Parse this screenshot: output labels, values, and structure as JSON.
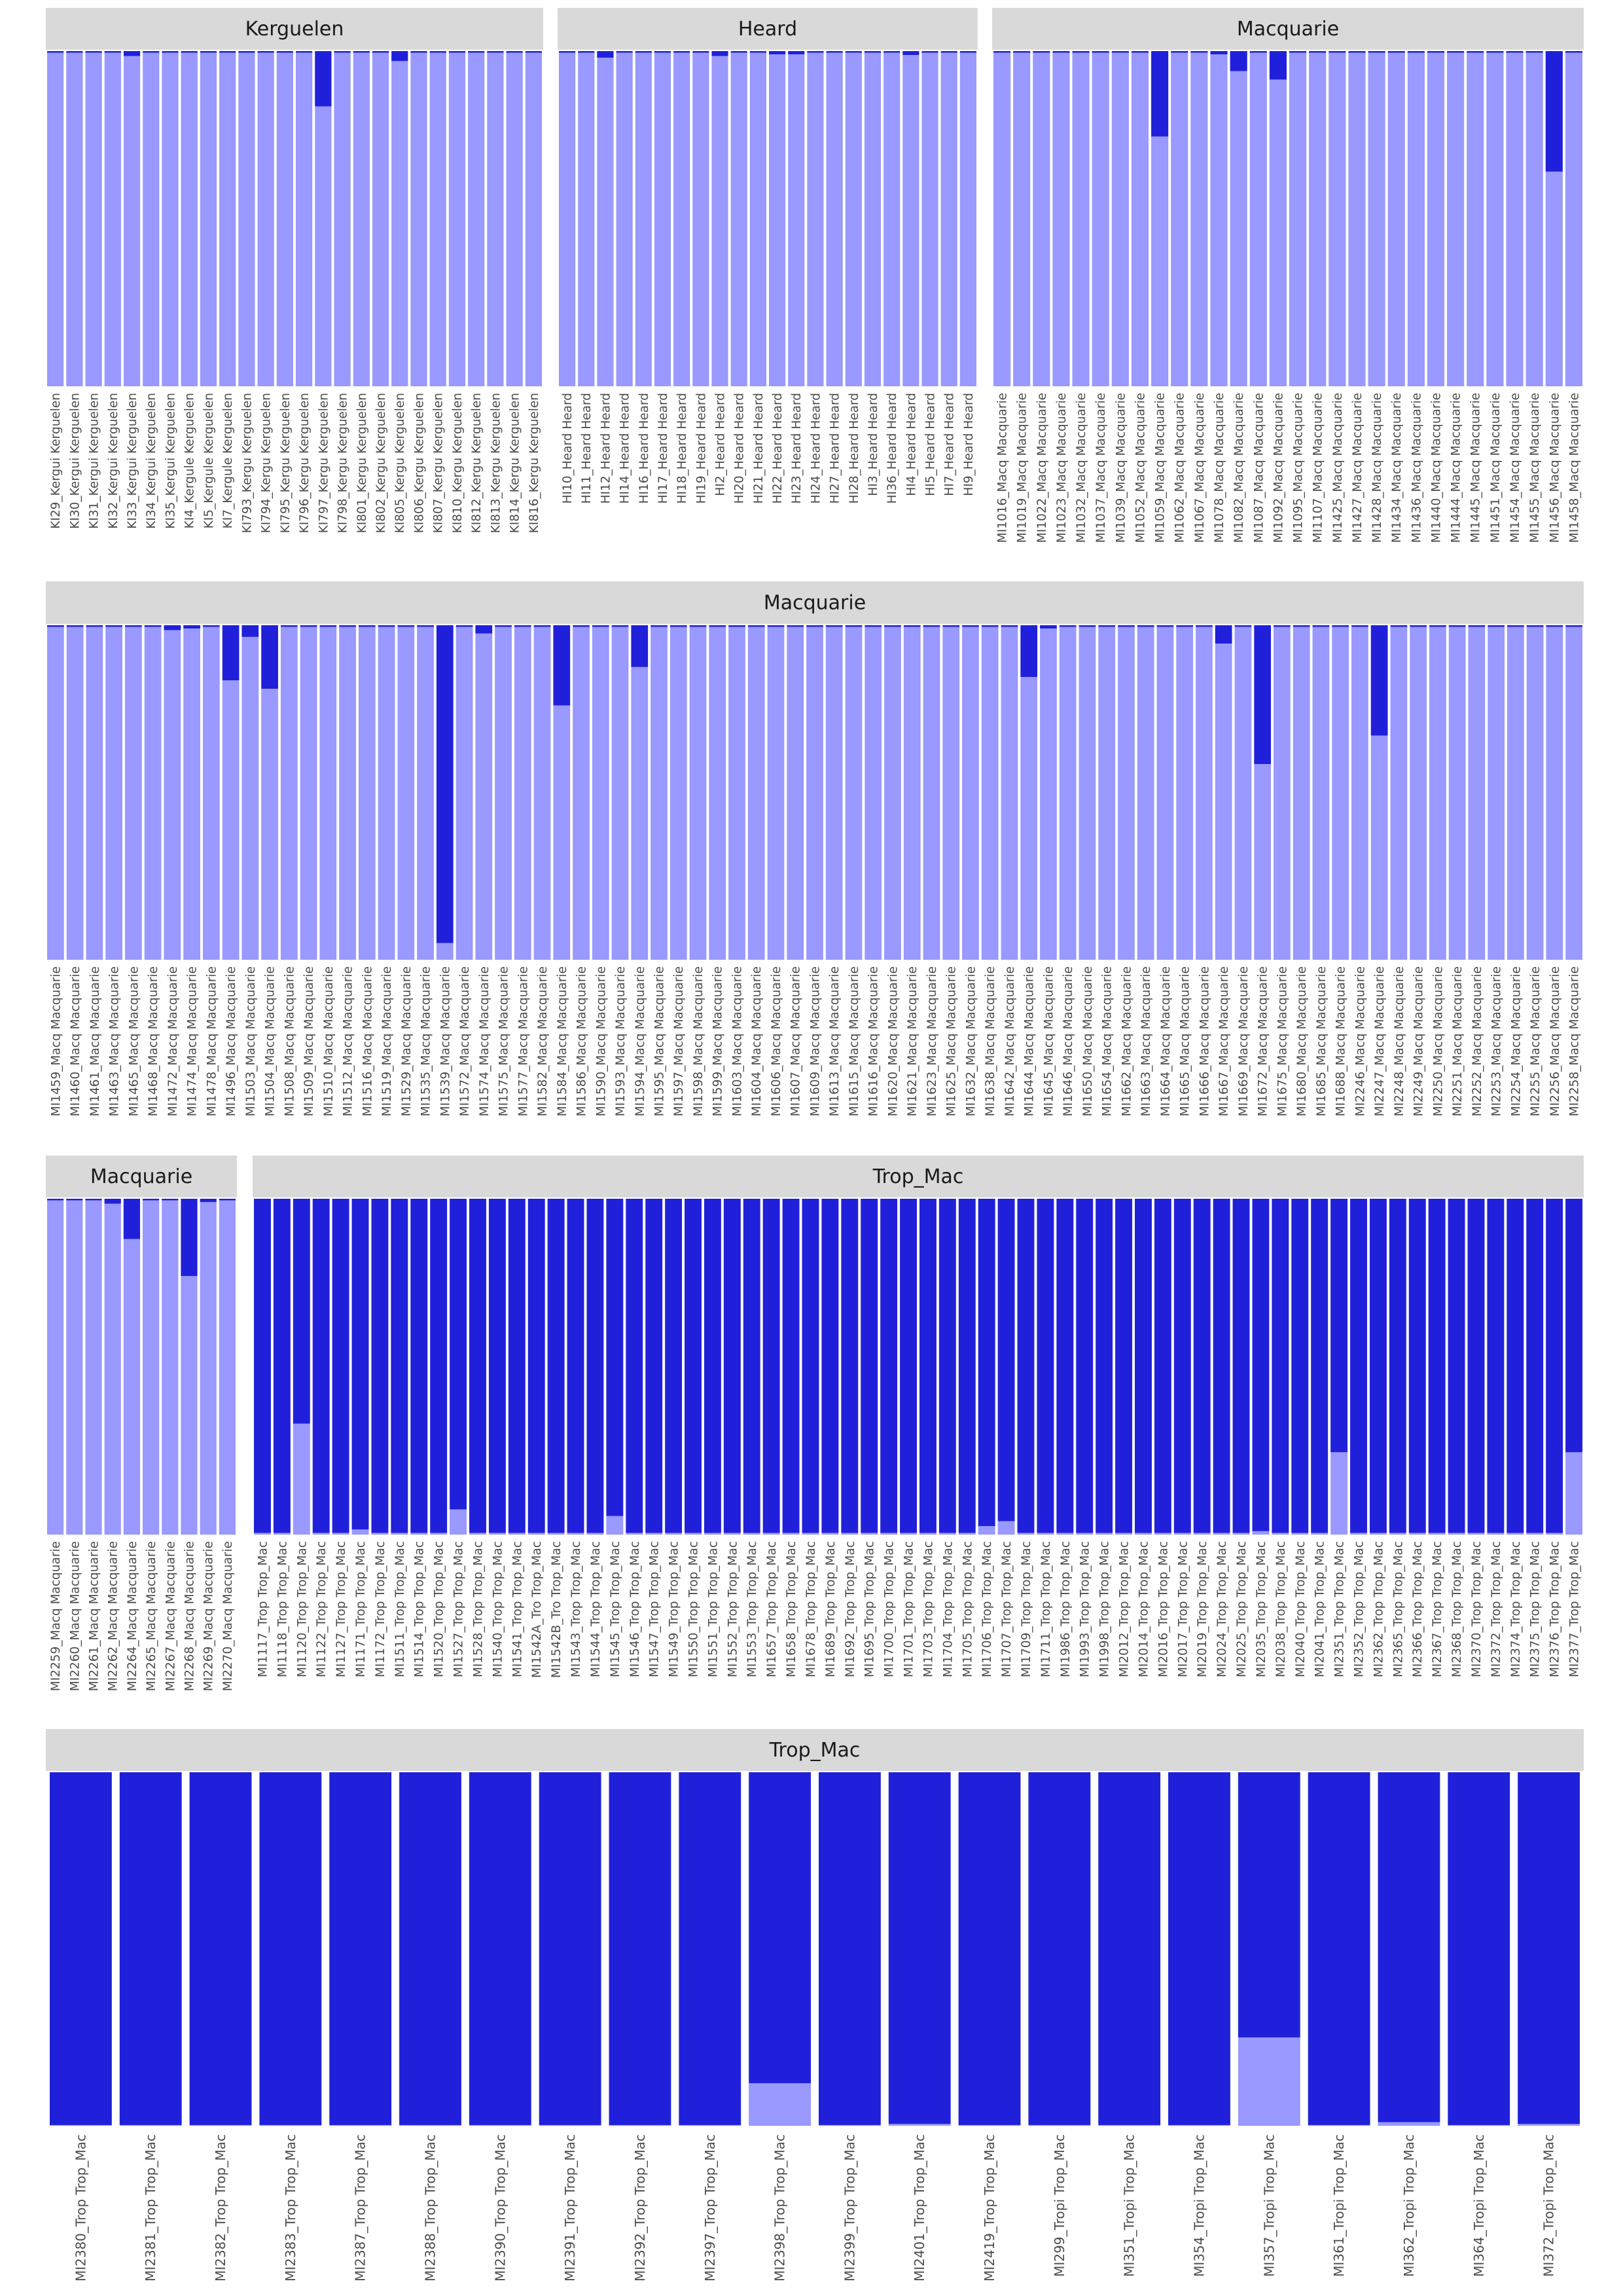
{
  "chart_data": {
    "type": "bar",
    "subtype": "stacked-proportion (admixture)",
    "ylim": [
      0,
      1
    ],
    "grid": false,
    "colors": {
      "cluster1": "#2020db",
      "cluster2": "#9999ff",
      "strip": "#d9d9d9"
    },
    "series_names": [
      "cluster1",
      "cluster2"
    ],
    "note": "values = proportion of cluster1 (dark blue) per individual; cluster2 = 1 - value",
    "rows": [
      {
        "panels": [
          {
            "name": "Kerguelen",
            "labels": [
              "KI29_Kergui Kerguelen",
              "KI30_Kergui Kerguelen",
              "KI31_Kergui Kerguelen",
              "KI32_Kergui Kerguelen",
              "KI33_Kergui Kerguelen",
              "KI34_Kergui Kerguelen",
              "KI35_Kergui Kerguelen",
              "KI4_Kergule Kerguelen",
              "KI5_Kergule Kerguelen",
              "KI7_Kergule Kerguelen",
              "KI793_Kergu Kerguelen",
              "KI794_Kergu Kerguelen",
              "KI795_Kergu Kerguelen",
              "KI796_Kergu Kerguelen",
              "KI797_Kergu Kerguelen",
              "KI798_Kergu Kerguelen",
              "KI801_Kergu Kerguelen",
              "KI802_Kergu Kerguelen",
              "KI805_Kergu Kerguelen",
              "KI806_Kergu Kerguelen",
              "KI807_Kergu Kerguelen",
              "KI810_Kergu Kerguelen",
              "KI812_Kergu Kerguelen",
              "KI813_Kergu Kerguelen",
              "KI814_Kergu Kerguelen",
              "KI816_Kergu Kerguelen"
            ],
            "values": [
              0.005,
              0.005,
              0.005,
              0.005,
              0.015,
              0.005,
              0.005,
              0.005,
              0.005,
              0.005,
              0.005,
              0.005,
              0.005,
              0.005,
              0.165,
              0.005,
              0.005,
              0.005,
              0.03,
              0.005,
              0.005,
              0.005,
              0.005,
              0.005,
              0.005,
              0.005
            ]
          },
          {
            "name": "Heard",
            "labels": [
              "HI10_Heard Heard",
              "HI11_Heard Heard",
              "HI12_Heard Heard",
              "HI14_Heard Heard",
              "HI16_Heard Heard",
              "HI17_Heard Heard",
              "HI18_Heard Heard",
              "HI19_Heard Heard",
              "HI2_Heard Heard",
              "HI20_Heard Heard",
              "HI21_Heard Heard",
              "HI22_Heard Heard",
              "HI23_Heard Heard",
              "HI24_Heard Heard",
              "HI27_Heard Heard",
              "HI28_Heard Heard",
              "HI3_Heard Heard",
              "HI36_Heard Heard",
              "HI4_Heard Heard",
              "HI5_Heard Heard",
              "HI7_Heard Heard",
              "HI9_Heard Heard"
            ],
            "values": [
              0.005,
              0.005,
              0.02,
              0.005,
              0.005,
              0.005,
              0.005,
              0.005,
              0.015,
              0.005,
              0.005,
              0.01,
              0.01,
              0.005,
              0.005,
              0.005,
              0.005,
              0.005,
              0.012,
              0.005,
              0.005,
              0.005
            ]
          },
          {
            "name": "Macquarie",
            "labels": [
              "MI1016_Macq Macquarie",
              "MI1019_Macq Macquarie",
              "MI1022_Macq Macquarie",
              "MI1023_Macq Macquarie",
              "MI1032_Macq Macquarie",
              "MI1037_Macq Macquarie",
              "MI1039_Macq Macquarie",
              "MI1052_Macq Macquarie",
              "MI1059_Macq Macquarie",
              "MI1062_Macq Macquarie",
              "MI1067_Macq Macquarie",
              "MI1078_Macq Macquarie",
              "MI1082_Macq Macquarie",
              "MI1087_Macq Macquarie",
              "MI1092_Macq Macquarie",
              "MI1095_Macq Macquarie",
              "MI1107_Macq Macquarie",
              "MI1425_Macq Macquarie",
              "MI1427_Macq Macquarie",
              "MI1428_Macq Macquarie",
              "MI1434_Macq Macquarie",
              "MI1436_Macq Macquarie",
              "MI1440_Macq Macquarie",
              "MI1444_Macq Macquarie",
              "MI1445_Macq Macquarie",
              "MI1451_Macq Macquarie",
              "MI1454_Macq Macquarie",
              "MI1455_Macq Macquarie",
              "MI1456_Macq Macquarie",
              "MI1458_Macq Macquarie"
            ],
            "values": [
              0.005,
              0.005,
              0.005,
              0.005,
              0.005,
              0.005,
              0.005,
              0.005,
              0.255,
              0.005,
              0.005,
              0.01,
              0.06,
              0.005,
              0.085,
              0.005,
              0.005,
              0.005,
              0.005,
              0.005,
              0.005,
              0.005,
              0.005,
              0.005,
              0.005,
              0.005,
              0.005,
              0.005,
              0.36,
              0.005
            ]
          }
        ]
      },
      {
        "panels": [
          {
            "name": "Macquarie",
            "labels": [
              "MI1459_Macq Macquarie",
              "MI1460_Macq Macquarie",
              "MI1461_Macq Macquarie",
              "MI1463_Macq Macquarie",
              "MI1465_Macq Macquarie",
              "MI1468_Macq Macquarie",
              "MI1472_Macq Macquarie",
              "MI1474_Macq Macquarie",
              "MI1478_Macq Macquarie",
              "MI1496_Macq Macquarie",
              "MI1503_Macq Macquarie",
              "MI1504_Macq Macquarie",
              "MI1508_Macq Macquarie",
              "MI1509_Macq Macquarie",
              "MI1510_Macq Macquarie",
              "MI1512_Macq Macquarie",
              "MI1516_Macq Macquarie",
              "MI1519_Macq Macquarie",
              "MI1529_Macq Macquarie",
              "MI1535_Macq Macquarie",
              "MI1539_Macq Macquarie",
              "MI1572_Macq Macquarie",
              "MI1574_Macq Macquarie",
              "MI1575_Macq Macquarie",
              "MI1577_Macq Macquarie",
              "MI1582_Macq Macquarie",
              "MI1584_Macq Macquarie",
              "MI1586_Macq Macquarie",
              "MI1590_Macq Macquarie",
              "MI1593_Macq Macquarie",
              "MI1594_Macq Macquarie",
              "MI1595_Macq Macquarie",
              "MI1597_Macq Macquarie",
              "MI1598_Macq Macquarie",
              "MI1599_Macq Macquarie",
              "MI1603_Macq Macquarie",
              "MI1604_Macq Macquarie",
              "MI1606_Macq Macquarie",
              "MI1607_Macq Macquarie",
              "MI1609_Macq Macquarie",
              "MI1613_Macq Macquarie",
              "MI1615_Macq Macquarie",
              "MI1616_Macq Macquarie",
              "MI1620_Macq Macquarie",
              "MI1621_Macq Macquarie",
              "MI1623_Macq Macquarie",
              "MI1625_Macq Macquarie",
              "MI1632_Macq Macquarie",
              "MI1638_Macq Macquarie",
              "MI1642_Macq Macquarie",
              "MI1644_Macq Macquarie",
              "MI1645_Macq Macquarie",
              "MI1646_Macq Macquarie",
              "MI1650_Macq Macquarie",
              "MI1654_Macq Macquarie",
              "MI1662_Macq Macquarie",
              "MI1663_Macq Macquarie",
              "MI1664_Macq Macquarie",
              "MI1665_Macq Macquarie",
              "MI1666_Macq Macquarie",
              "MI1667_Macq Macquarie",
              "MI1669_Macq Macquarie",
              "MI1672_Macq Macquarie",
              "MI1675_Macq Macquarie",
              "MI1680_Macq Macquarie",
              "MI1685_Macq Macquarie",
              "MI1688_Macq Macquarie",
              "MI2246_Macq Macquarie",
              "MI2247_Macq Macquarie",
              "MI2248_Macq Macquarie",
              "MI2249_Macq Macquarie",
              "MI2250_Macq Macquarie",
              "MI2251_Macq Macquarie",
              "MI2252_Macq Macquarie",
              "MI2253_Macq Macquarie",
              "MI2254_Macq Macquarie",
              "MI2255_Macq Macquarie",
              "MI2256_Macq Macquarie",
              "MI2258_Macq Macquarie"
            ],
            "values": [
              0.005,
              0.005,
              0.005,
              0.005,
              0.005,
              0.005,
              0.015,
              0.01,
              0.005,
              0.165,
              0.035,
              0.19,
              0.005,
              0.005,
              0.005,
              0.005,
              0.005,
              0.005,
              0.005,
              0.005,
              0.95,
              0.005,
              0.025,
              0.005,
              0.005,
              0.005,
              0.24,
              0.005,
              0.005,
              0.005,
              0.125,
              0.005,
              0.005,
              0.005,
              0.005,
              0.005,
              0.005,
              0.005,
              0.005,
              0.005,
              0.005,
              0.005,
              0.005,
              0.005,
              0.005,
              0.005,
              0.005,
              0.005,
              0.005,
              0.005,
              0.155,
              0.01,
              0.005,
              0.005,
              0.005,
              0.005,
              0.005,
              0.005,
              0.005,
              0.005,
              0.055,
              0.005,
              0.415,
              0.005,
              0.005,
              0.005,
              0.005,
              0.005,
              0.33,
              0.005,
              0.005,
              0.005,
              0.005,
              0.005,
              0.005,
              0.005,
              0.005,
              0.005,
              0.005
            ]
          }
        ]
      },
      {
        "panels": [
          {
            "name": "Macquarie",
            "labels": [
              "MI2259_Macq Macquarie",
              "MI2260_Macq Macquarie",
              "MI2261_Macq Macquarie",
              "MI2262_Macq Macquarie",
              "MI2264_Macq Macquarie",
              "MI2265_Macq Macquarie",
              "MI2267_Macq Macquarie",
              "MI2268_Macq Macquarie",
              "MI2269_Macq Macquarie",
              "MI2270_Macq Macquarie"
            ],
            "values": [
              0.005,
              0.005,
              0.005,
              0.015,
              0.12,
              0.005,
              0.005,
              0.23,
              0.01,
              0.005
            ]
          },
          {
            "name": "Trop_Mac",
            "labels": [
              "MI1117_Trop Trop_Mac",
              "MI1118_Trop Trop_Mac",
              "MI1120_Trop Trop_Mac",
              "MI1122_Trop Trop_Mac",
              "MI1127_Trop Trop_Mac",
              "MI1171_Trop Trop_Mac",
              "MI1172_Trop Trop_Mac",
              "MI1511_Trop Trop_Mac",
              "MI1514_Trop Trop_Mac",
              "MI1520_Trop Trop_Mac",
              "MI1527_Trop Trop_Mac",
              "MI1528_Trop Trop_Mac",
              "MI1540_Trop Trop_Mac",
              "MI1541_Trop Trop_Mac",
              "MI1542A_Tro Trop_Mac",
              "MI1542B_Tro Trop_Mac",
              "MI1543_Trop Trop_Mac",
              "MI1544_Trop Trop_Mac",
              "MI1545_Trop Trop_Mac",
              "MI1546_Trop Trop_Mac",
              "MI1547_Trop Trop_Mac",
              "MI1549_Trop Trop_Mac",
              "MI1550_Trop Trop_Mac",
              "MI1551_Trop Trop_Mac",
              "MI1552_Trop Trop_Mac",
              "MI1553_Trop Trop_Mac",
              "MI1657_Trop Trop_Mac",
              "MI1658_Trop Trop_Mac",
              "MI1678_Trop Trop_Mac",
              "MI1689_Trop Trop_Mac",
              "MI1692_Trop Trop_Mac",
              "MI1695_Trop Trop_Mac",
              "MI1700_Trop Trop_Mac",
              "MI1701_Trop Trop_Mac",
              "MI1703_Trop Trop_Mac",
              "MI1704_Trop Trop_Mac",
              "MI1705_Trop Trop_Mac",
              "MI1706_Trop Trop_Mac",
              "MI1707_Trop Trop_Mac",
              "MI1709_Trop Trop_Mac",
              "MI1711_Trop Trop_Mac",
              "MI1986_Trop Trop_Mac",
              "MI1993_Trop Trop_Mac",
              "MI1998_Trop Trop_Mac",
              "MI2012_Trop Trop_Mac",
              "MI2014_Trop Trop_Mac",
              "MI2016_Trop Trop_Mac",
              "MI2017_Trop Trop_Mac",
              "MI2019_Trop Trop_Mac",
              "MI2024_Trop Trop_Mac",
              "MI2025_Trop Trop_Mac",
              "MI2035_Trop Trop_Mac",
              "MI2038_Trop Trop_Mac",
              "MI2040_Trop Trop_Mac",
              "MI2041_Trop Trop_Mac",
              "MI2351_Trop Trop_Mac",
              "MI2352_Trop Trop_Mac",
              "MI2362_Trop Trop_Mac",
              "MI2365_Trop Trop_Mac",
              "MI2366_Trop Trop_Mac",
              "MI2367_Trop Trop_Mac",
              "MI2368_Trop Trop_Mac",
              "MI2370_Trop Trop_Mac",
              "MI2372_Trop Trop_Mac",
              "MI2374_Trop Trop_Mac",
              "MI2375_Trop Trop_Mac",
              "MI2376_Trop Trop_Mac",
              "MI2377_Trop Trop_Mac"
            ],
            "values": [
              0.995,
              0.995,
              0.67,
              0.995,
              0.995,
              0.985,
              0.995,
              0.995,
              0.995,
              0.995,
              0.925,
              0.995,
              0.995,
              0.995,
              0.995,
              0.995,
              0.995,
              0.995,
              0.945,
              0.995,
              0.995,
              0.995,
              0.995,
              0.995,
              0.995,
              0.995,
              0.995,
              0.995,
              0.995,
              0.995,
              0.995,
              0.995,
              0.995,
              0.995,
              0.995,
              0.995,
              0.995,
              0.975,
              0.96,
              0.995,
              0.995,
              0.995,
              0.995,
              0.995,
              0.995,
              0.995,
              0.995,
              0.995,
              0.995,
              0.995,
              0.995,
              0.99,
              0.995,
              0.995,
              0.995,
              0.755,
              0.995,
              0.995,
              0.995,
              0.995,
              0.995,
              0.995,
              0.995,
              0.995,
              0.995,
              0.995,
              0.995,
              0.755
            ]
          }
        ]
      },
      {
        "panels": [
          {
            "name": "Trop_Mac",
            "labels": [
              "MI2380_Trop Trop_Mac",
              "MI2381_Trop Trop_Mac",
              "MI2382_Trop Trop_Mac",
              "MI2383_Trop Trop_Mac",
              "MI2387_Trop Trop_Mac",
              "MI2388_Trop Trop_Mac",
              "MI2390_Trop Trop_Mac",
              "MI2391_Trop Trop_Mac",
              "MI2392_Trop Trop_Mac",
              "MI2397_Trop Trop_Mac",
              "MI2398_Trop Trop_Mac",
              "MI2399_Trop Trop_Mac",
              "MI2401_Trop Trop_Mac",
              "MI2419_Trop Trop_Mac",
              "MI299_Tropi Trop_Mac",
              "MI351_Tropi Trop_Mac",
              "MI354_Tropi Trop_Mac",
              "MI357_Tropi Trop_Mac",
              "MI361_Tropi Trop_Mac",
              "MI362_Tropi Trop_Mac",
              "MI364_Tropi Trop_Mac",
              "MI372_Tropi Trop_Mac"
            ],
            "values": [
              0.998,
              0.998,
              0.998,
              0.998,
              0.998,
              0.998,
              0.998,
              0.998,
              0.998,
              0.998,
              0.88,
              0.998,
              0.995,
              0.998,
              0.998,
              0.998,
              0.998,
              0.75,
              0.998,
              0.99,
              0.998,
              0.995
            ]
          }
        ]
      }
    ]
  }
}
